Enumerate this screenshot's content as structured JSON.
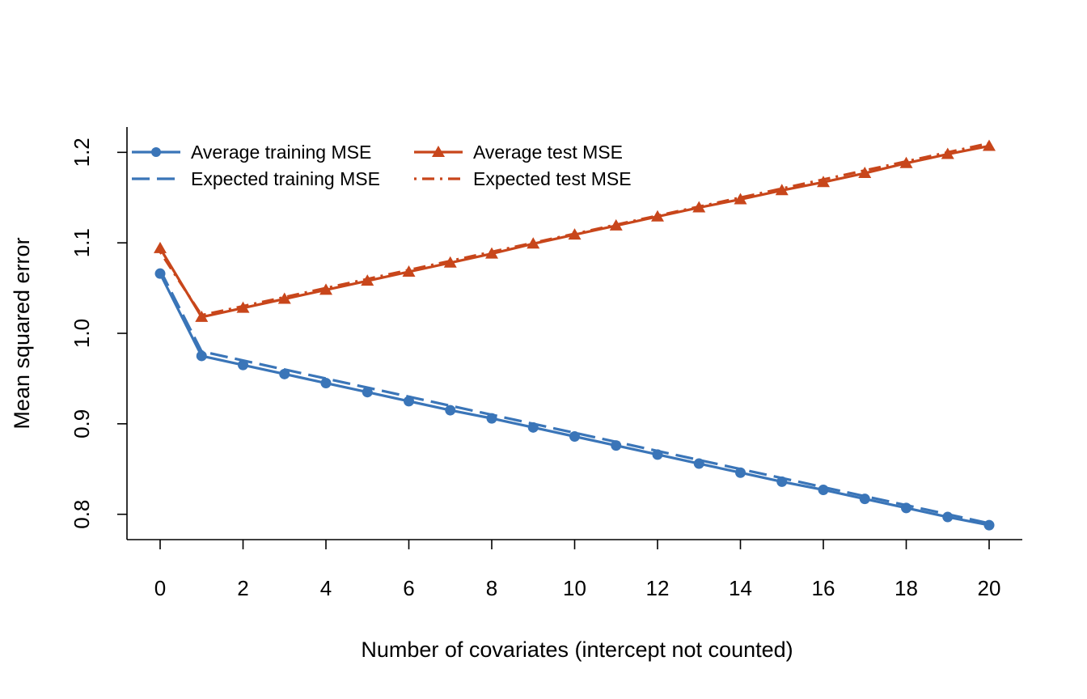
{
  "chart_data": {
    "type": "line",
    "xlabel": "Number of covariates (intercept not counted)",
    "ylabel": "Mean squared error",
    "xlim": [
      -0.8,
      20.8
    ],
    "ylim": [
      0.772,
      1.228
    ],
    "x_ticks": [
      0,
      2,
      4,
      6,
      8,
      10,
      12,
      14,
      16,
      18,
      20
    ],
    "y_ticks": [
      0.8,
      0.9,
      1.0,
      1.1,
      1.2
    ],
    "y_tick_labels": [
      "0.8",
      "0.9",
      "1.0",
      "1.1",
      "1.2"
    ],
    "grid": false,
    "legend_position": "top-left",
    "x": [
      0,
      1,
      2,
      3,
      4,
      5,
      6,
      7,
      8,
      9,
      10,
      11,
      12,
      13,
      14,
      15,
      16,
      17,
      18,
      19,
      20
    ],
    "series": [
      {
        "name": "Average training MSE",
        "color": "#3a75b8",
        "line": "solid",
        "marker": "circle",
        "values": [
          1.066,
          0.975,
          0.965,
          0.955,
          0.945,
          0.935,
          0.925,
          0.915,
          0.906,
          0.896,
          0.886,
          0.876,
          0.866,
          0.856,
          0.846,
          0.836,
          0.827,
          0.817,
          0.807,
          0.797,
          0.788
        ]
      },
      {
        "name": "Expected training MSE",
        "color": "#3a75b8",
        "line": "dashed",
        "marker": "none",
        "values": [
          1.07,
          0.98,
          0.97,
          0.96,
          0.95,
          0.94,
          0.93,
          0.92,
          0.91,
          0.9,
          0.89,
          0.88,
          0.87,
          0.86,
          0.85,
          0.84,
          0.83,
          0.82,
          0.81,
          0.8,
          0.79
        ]
      },
      {
        "name": "Average test MSE",
        "color": "#c8461b",
        "line": "solid",
        "marker": "triangle",
        "values": [
          1.094,
          1.018,
          1.028,
          1.038,
          1.048,
          1.058,
          1.068,
          1.078,
          1.088,
          1.099,
          1.109,
          1.119,
          1.129,
          1.139,
          1.148,
          1.158,
          1.167,
          1.177,
          1.188,
          1.198,
          1.207
        ]
      },
      {
        "name": "Expected test MSE",
        "color": "#c8461b",
        "line": "dotdash",
        "marker": "none",
        "values": [
          1.09,
          1.02,
          1.03,
          1.04,
          1.05,
          1.06,
          1.07,
          1.08,
          1.09,
          1.1,
          1.11,
          1.12,
          1.13,
          1.14,
          1.15,
          1.16,
          1.17,
          1.18,
          1.19,
          1.2,
          1.21
        ]
      }
    ]
  }
}
